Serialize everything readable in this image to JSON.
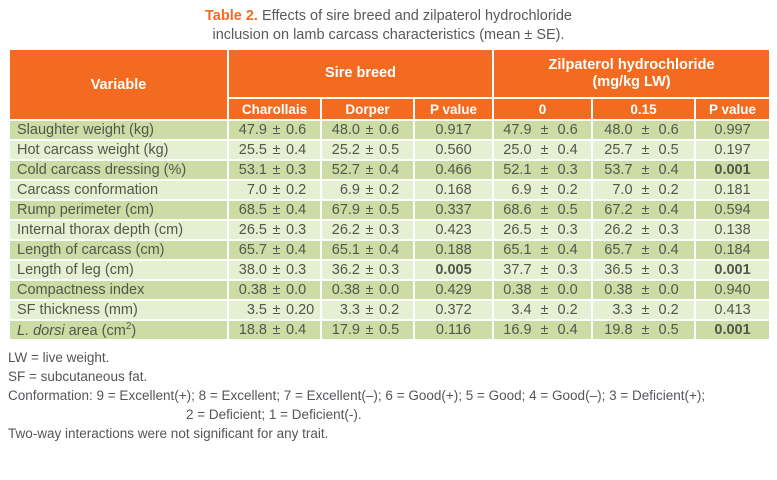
{
  "caption": {
    "label": "Table 2.",
    "line1": "Effects of sire breed and zilpaterol hydrochloride",
    "line2": "inclusion on lamb carcass characteristics (mean ± SE)."
  },
  "table": {
    "variable_header": "Variable",
    "group_sire": "Sire breed",
    "group_zh_line1": "Zilpaterol hydrochloride",
    "group_zh_line2": "(mg/kg LW)",
    "subheaders": [
      "Charollais",
      "Dorper",
      "P value",
      "0",
      "0.15",
      "P value"
    ],
    "rows": [
      {
        "variable": "Slaughter weight (kg)",
        "sire": [
          {
            "v": "47.9",
            "e": "0.6"
          },
          {
            "v": "48.0",
            "e": "0.6"
          }
        ],
        "sire_p": "0.917",
        "sire_p_bold": false,
        "zh": [
          {
            "v": "47.9",
            "e": "0.6"
          },
          {
            "v": "48.0",
            "e": "0.6"
          }
        ],
        "zh_p": "0.997",
        "zh_p_bold": false
      },
      {
        "variable": "Hot carcass weight (kg)",
        "sire": [
          {
            "v": "25.5",
            "e": "0.4"
          },
          {
            "v": "25.2",
            "e": "0.5"
          }
        ],
        "sire_p": "0.560",
        "sire_p_bold": false,
        "zh": [
          {
            "v": "25.0",
            "e": "0.4"
          },
          {
            "v": "25.7",
            "e": "0.5"
          }
        ],
        "zh_p": "0.197",
        "zh_p_bold": false
      },
      {
        "variable": "Cold carcass dressing (%)",
        "sire": [
          {
            "v": "53.1",
            "e": "0.3"
          },
          {
            "v": "52.7",
            "e": "0.4"
          }
        ],
        "sire_p": "0.466",
        "sire_p_bold": false,
        "zh": [
          {
            "v": "52.1",
            "e": "0.3"
          },
          {
            "v": "53.7",
            "e": "0.4"
          }
        ],
        "zh_p": "0.001",
        "zh_p_bold": true
      },
      {
        "variable": "Carcass conformation",
        "sire": [
          {
            "v": "7.0",
            "e": "0.2"
          },
          {
            "v": "6.9",
            "e": "0.2"
          }
        ],
        "sire_p": "0.168",
        "sire_p_bold": false,
        "zh": [
          {
            "v": "6.9",
            "e": "0.2"
          },
          {
            "v": "7.0",
            "e": "0.2"
          }
        ],
        "zh_p": "0.181",
        "zh_p_bold": false
      },
      {
        "variable": "Rump perimeter (cm)",
        "sire": [
          {
            "v": "68.5",
            "e": "0.4"
          },
          {
            "v": "67.9",
            "e": "0.5"
          }
        ],
        "sire_p": "0.337",
        "sire_p_bold": false,
        "zh": [
          {
            "v": "68.6",
            "e": "0.5"
          },
          {
            "v": "67.2",
            "e": "0.4"
          }
        ],
        "zh_p": "0.594",
        "zh_p_bold": false
      },
      {
        "variable": "Internal thorax depth (cm)",
        "sire": [
          {
            "v": "26.5",
            "e": "0.3"
          },
          {
            "v": "26.2",
            "e": "0.3"
          }
        ],
        "sire_p": "0.423",
        "sire_p_bold": false,
        "zh": [
          {
            "v": "26.5",
            "e": "0.3"
          },
          {
            "v": "26.2",
            "e": "0.3"
          }
        ],
        "zh_p": "0.138",
        "zh_p_bold": false
      },
      {
        "variable": "Length of carcass (cm)",
        "sire": [
          {
            "v": "65.7",
            "e": "0.4"
          },
          {
            "v": "65.1",
            "e": "0.4"
          }
        ],
        "sire_p": "0.188",
        "sire_p_bold": false,
        "zh": [
          {
            "v": "65.1",
            "e": "0.4"
          },
          {
            "v": "65.7",
            "e": "0.4"
          }
        ],
        "zh_p": "0.184",
        "zh_p_bold": false
      },
      {
        "variable": "Length of leg (cm)",
        "sire": [
          {
            "v": "38.0",
            "e": "0.3"
          },
          {
            "v": "36.2",
            "e": "0.3"
          }
        ],
        "sire_p": "0.005",
        "sire_p_bold": true,
        "zh": [
          {
            "v": "37.7",
            "e": "0.3"
          },
          {
            "v": "36.5",
            "e": "0.3"
          }
        ],
        "zh_p": "0.001",
        "zh_p_bold": true
      },
      {
        "variable": "Compactness index",
        "sire": [
          {
            "v": "0.38",
            "e": "0.0"
          },
          {
            "v": "0.38",
            "e": "0.0"
          }
        ],
        "sire_p": "0.429",
        "sire_p_bold": false,
        "zh": [
          {
            "v": "0.38",
            "e": "0.0"
          },
          {
            "v": "0.38",
            "e": "0.0"
          }
        ],
        "zh_p": "0.940",
        "zh_p_bold": false
      },
      {
        "variable": "SF thickness (mm)",
        "sire": [
          {
            "v": "3.5",
            "e": "0.20"
          },
          {
            "v": "3.3",
            "e": "0.2"
          }
        ],
        "sire_p": "0.372",
        "sire_p_bold": false,
        "zh": [
          {
            "v": "3.4",
            "e": "0.2"
          },
          {
            "v": "3.3",
            "e": "0.2"
          }
        ],
        "zh_p": "0.413",
        "zh_p_bold": false
      },
      {
        "variable": [
          {
            "t": "L. dorsi",
            "i": true
          },
          {
            "t": " area (cm",
            "i": false
          },
          {
            "t": "2",
            "sup": true
          },
          {
            "t": ")",
            "i": false
          }
        ],
        "sire": [
          {
            "v": "18.8",
            "e": "0.4"
          },
          {
            "v": "17.9",
            "e": "0.5"
          }
        ],
        "sire_p": "0.116",
        "sire_p_bold": false,
        "zh": [
          {
            "v": "16.9",
            "e": "0.4"
          },
          {
            "v": "19.8",
            "e": "0.5"
          }
        ],
        "zh_p": "0.001",
        "zh_p_bold": true
      }
    ]
  },
  "footnotes": [
    {
      "text": "LW = live weight."
    },
    {
      "text": "SF = subcutaneous fat."
    },
    {
      "text": "Conformation: 9 = Excellent(+); 8 = Excellent; 7 = Excellent(–); 6 = Good(+); 5 = Good; 4 = Good(–); 3 = Deficient(+);"
    },
    {
      "text": "2 = Deficient; 1 = Deficient(-).",
      "indent": true
    },
    {
      "text": "Two-way interactions were not significant for any trait."
    }
  ],
  "colors": {
    "header_orange": "#F26B21",
    "row_green_dark": "#CBDDA4",
    "row_green_light": "#E5EFD1",
    "body_text": "#55564C",
    "caption_text": "#58595B"
  }
}
